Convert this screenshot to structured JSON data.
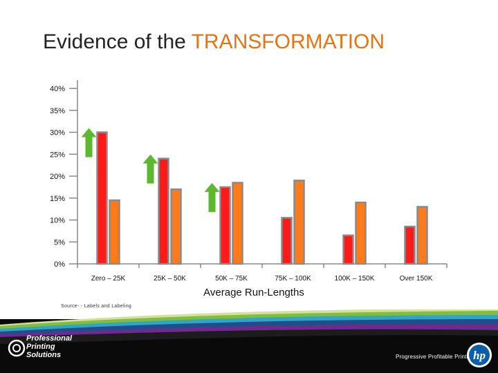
{
  "slide": {
    "title_prefix": "Evidence of the ",
    "title_accent": "TRANSFORMATION",
    "source": "Source- - Labels and Labeling",
    "logo_lines": [
      "Professional",
      "Printing",
      "Solutions"
    ],
    "tagline": "Progressive Profitable Printing",
    "hp_logo_text": "hp"
  },
  "colors": {
    "accent": "#e8730f",
    "series_red": "#ff1a1a",
    "series_orange": "#ff7a1a",
    "arrow_green": "#5cb82e",
    "footer_dark": "#0a0a0a"
  },
  "chart_data": {
    "type": "bar",
    "categories": [
      "Zero – 25K",
      "25K – 50K",
      "50K – 75K",
      "75K – 100K",
      "100K – 150K",
      "Over 150K"
    ],
    "series": [
      {
        "color": "#ff1a1a",
        "values": [
          30,
          24,
          17.5,
          10.5,
          6.5,
          8.5
        ]
      },
      {
        "color": "#ff7a1a",
        "values": [
          14.5,
          17,
          18.5,
          19,
          14,
          13
        ]
      }
    ],
    "xlabel": "Average Run-Lengths",
    "ylabel": "",
    "ylim": [
      0,
      40
    ],
    "yticks": [
      "0%",
      "5%",
      "10%",
      "15%",
      "20%",
      "25%",
      "30%",
      "35%",
      "40%"
    ],
    "ytick_values": [
      0,
      5,
      10,
      15,
      20,
      25,
      30,
      35,
      40
    ],
    "annotations": {
      "up_arrows_on_categories": [
        0,
        1,
        2
      ]
    }
  }
}
